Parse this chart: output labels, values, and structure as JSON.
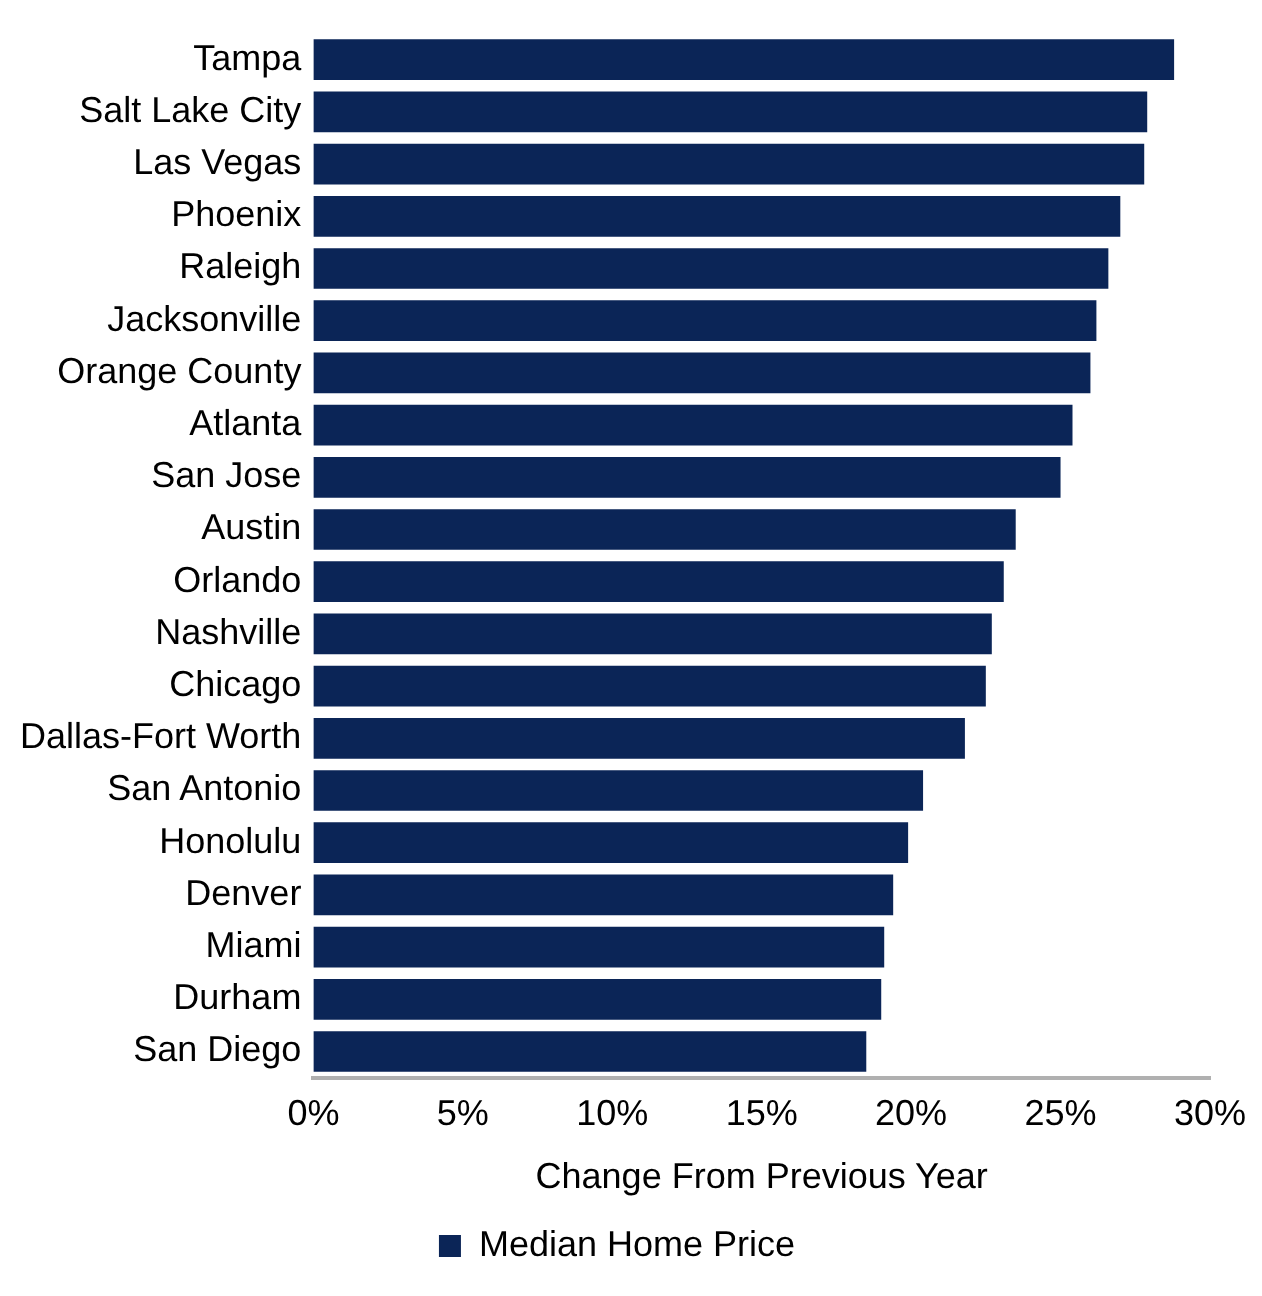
{
  "chart_data": {
    "type": "bar",
    "orientation": "horizontal",
    "xlabel": "Change From Previous Year",
    "categories": [
      "Tampa",
      "Salt Lake City",
      "Las Vegas",
      "Phoenix",
      "Raleigh",
      "Jacksonville",
      "Orange County",
      "Atlanta",
      "San Jose",
      "Austin",
      "Orlando",
      "Nashville",
      "Chicago",
      "Dallas-Fort Worth",
      "San Antonio",
      "Honolulu",
      "Denver",
      "Miami",
      "Durham",
      "San Diego"
    ],
    "series": [
      {
        "name": "Median Home Price",
        "color": "#0b2557",
        "values": [
          28.8,
          27.9,
          27.8,
          27.0,
          26.6,
          26.2,
          26.0,
          25.4,
          25.0,
          23.5,
          23.1,
          22.7,
          22.5,
          21.8,
          20.4,
          19.9,
          19.4,
          19.1,
          19.0,
          18.5
        ]
      }
    ],
    "xlim": [
      0,
      30
    ],
    "xticks": [
      {
        "value": 0,
        "label": "0%"
      },
      {
        "value": 5,
        "label": "5%"
      },
      {
        "value": 10,
        "label": "10%"
      },
      {
        "value": 15,
        "label": "15%"
      },
      {
        "value": 20,
        "label": "20%"
      },
      {
        "value": 25,
        "label": "25%"
      },
      {
        "value": 30,
        "label": "30%"
      }
    ],
    "grid": false,
    "legend": "bottom"
  }
}
